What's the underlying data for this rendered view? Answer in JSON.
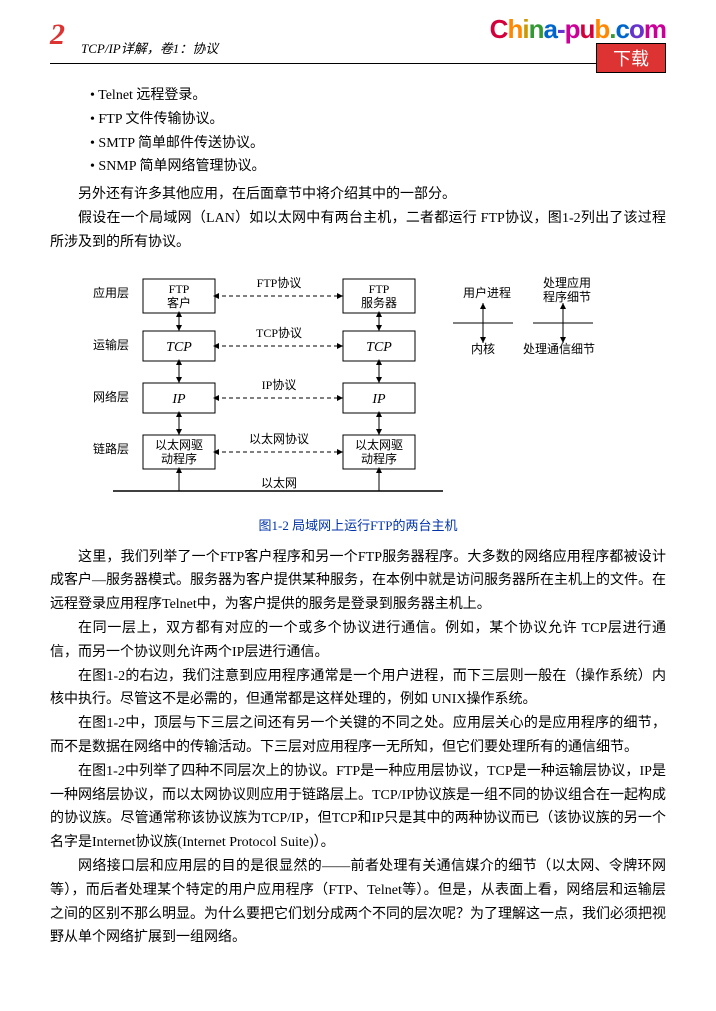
{
  "header": {
    "page_number": "2",
    "book_title": "TCP/IP详解，卷1：协议",
    "download_label": "下载"
  },
  "bullets": [
    "• Telnet 远程登录。",
    "• FTP 文件传输协议。",
    "• SMTP 简单邮件传送协议。",
    "• SNMP 简单网络管理协议。"
  ],
  "intro_paragraphs": [
    "另外还有许多其他应用，在后面章节中将介绍其中的一部分。",
    "假设在一个局域网（LAN）如以太网中有两台主机，二者都运行 FTP协议，图1-2列出了该过程所涉及到的所有协议。"
  ],
  "diagram": {
    "layers": [
      {
        "label": "应用层",
        "left_box": "FTP\n客户",
        "right_box": "FTP\n服务器",
        "protocol": "FTP协议"
      },
      {
        "label": "运输层",
        "left_box": "TCP",
        "right_box": "TCP",
        "protocol": "TCP协议"
      },
      {
        "label": "网络层",
        "left_box": "IP",
        "right_box": "IP",
        "protocol": "IP协议"
      },
      {
        "label": "链路层",
        "left_box": "以太网驱\n动程序",
        "right_box": "以太网驱\n动程序",
        "protocol": "以太网协议"
      }
    ],
    "bottom_label": "以太网",
    "side": {
      "user_proc": "用户进程",
      "kernel": "内核",
      "app_detail": "处理应用\n程序细节",
      "comm_detail": "处理通信细节"
    },
    "box_stroke": "#000000",
    "dash": "4,3",
    "font_size": 12,
    "layer_label_fs": 12
  },
  "caption": "图1-2  局域网上运行FTP的两台主机",
  "body_paragraphs": [
    "这里，我们列举了一个FTP客户程序和另一个FTP服务器程序。大多数的网络应用程序都被设计成客户—服务器模式。服务器为客户提供某种服务，在本例中就是访问服务器所在主机上的文件。在远程登录应用程序Telnet中，为客户提供的服务是登录到服务器主机上。",
    "在同一层上，双方都有对应的一个或多个协议进行通信。例如，某个协议允许 TCP层进行通信，而另一个协议则允许两个IP层进行通信。",
    "在图1-2的右边，我们注意到应用程序通常是一个用户进程，而下三层则一般在（操作系统）内核中执行。尽管这不是必需的，但通常都是这样处理的，例如 UNIX操作系统。",
    "在图1-2中，顶层与下三层之间还有另一个关键的不同之处。应用层关心的是应用程序的细节，而不是数据在网络中的传输活动。下三层对应用程序一无所知，但它们要处理所有的通信细节。",
    "在图1-2中列举了四种不同层次上的协议。FTP是一种应用层协议，TCP是一种运输层协议，IP是一种网络层协议，而以太网协议则应用于链路层上。TCP/IP协议族是一组不同的协议组合在一起构成的协议族。尽管通常称该协议族为TCP/IP，但TCP和IP只是其中的两种协议而已（该协议族的另一个名字是Internet协议族(Internet Protocol Suite)）。",
    "网络接口层和应用层的目的是很显然的——前者处理有关通信媒介的细节（以太网、令牌环网等），而后者处理某个特定的用户应用程序（FTP、Telnet等）。但是，从表面上看，网络层和运输层之间的区别不那么明显。为什么要把它们划分成两个不同的层次呢？为了理解这一点，我们必须把视野从单个网络扩展到一组网络。"
  ]
}
